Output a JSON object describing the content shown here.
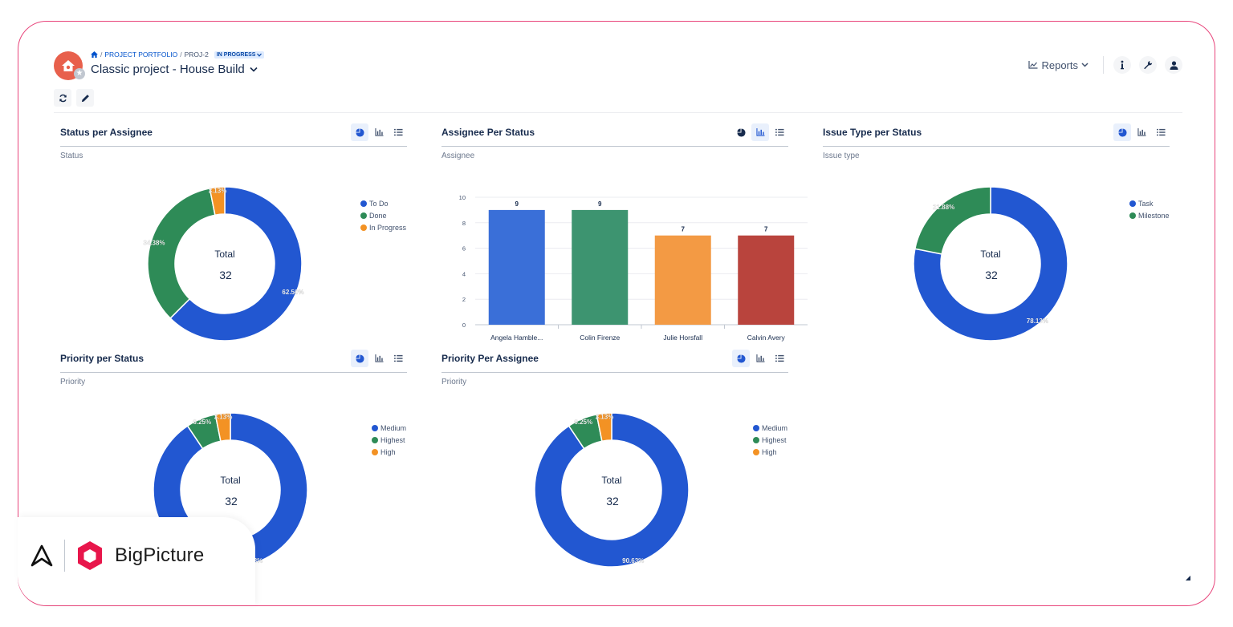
{
  "header": {
    "breadcrumb": {
      "portfolio": "PROJECT PORTFOLIO",
      "sep": "/",
      "project_key": "PROJ-2",
      "status": "IN PROGRESS"
    },
    "title": "Classic project - House Build",
    "reports_label": "Reports"
  },
  "colors": {
    "blue": "#2257d1",
    "green": "#2e8b57",
    "orange": "#f39224",
    "red": "#b94039",
    "brand": "#e8467c"
  },
  "widgets": {
    "status_per_assignee": {
      "title": "Status per Assignee",
      "subtitle": "Status"
    },
    "assignee_per_status": {
      "title": "Assignee Per Status",
      "subtitle": "Assignee"
    },
    "issue_type_per_status": {
      "title": "Issue Type per Status",
      "subtitle": "Issue type"
    },
    "priority_per_status": {
      "title": "Priority per Status",
      "subtitle": "Priority"
    },
    "priority_per_assignee": {
      "title": "Priority Per Assignee",
      "subtitle": "Priority"
    }
  },
  "chart_data": [
    {
      "id": "status_per_assignee",
      "type": "pie",
      "title": "Status per Assignee",
      "center_label": "Total",
      "center_value": "32",
      "slices": [
        {
          "name": "To Do",
          "value": 62.5,
          "label": "62.50%",
          "color": "#2257d1"
        },
        {
          "name": "Done",
          "value": 34.38,
          "label": "34.38%",
          "color": "#2e8b57"
        },
        {
          "name": "In Progress",
          "value": 3.13,
          "label": "3.13%",
          "color": "#f39224"
        }
      ],
      "legend": "right"
    },
    {
      "id": "assignee_per_status",
      "type": "bar",
      "title": "Assignee Per Status",
      "categories": [
        "Angela Hamble...",
        "Colin Firenze",
        "Julie Horsfall",
        "Calvin Avery"
      ],
      "values": [
        9,
        9,
        7,
        7
      ],
      "colors": [
        "#3a6fd8",
        "#3d9470",
        "#f39a44",
        "#b9443d"
      ],
      "ylim": [
        0,
        10
      ],
      "yticks": [
        0,
        2,
        4,
        6,
        8,
        10
      ],
      "grid": true
    },
    {
      "id": "issue_type_per_status",
      "type": "pie",
      "title": "Issue Type per Status",
      "center_label": "Total",
      "center_value": "32",
      "slices": [
        {
          "name": "Task",
          "value": 78.13,
          "label": "78.13%",
          "color": "#2257d1"
        },
        {
          "name": "Milestone",
          "value": 21.88,
          "label": "21.88%",
          "color": "#2e8b57"
        }
      ],
      "legend": "right"
    },
    {
      "id": "priority_per_status",
      "type": "pie",
      "title": "Priority per Status",
      "center_label": "Total",
      "center_value": "32",
      "slices": [
        {
          "name": "Medium",
          "value": 90.63,
          "label": "90.63%",
          "color": "#2257d1"
        },
        {
          "name": "Highest",
          "value": 6.25,
          "label": "6.25%",
          "color": "#2e8b57"
        },
        {
          "name": "High",
          "value": 3.13,
          "label": "3.13%",
          "color": "#f39224"
        }
      ],
      "legend": "right"
    },
    {
      "id": "priority_per_assignee",
      "type": "pie",
      "title": "Priority Per Assignee",
      "center_label": "Total",
      "center_value": "32",
      "slices": [
        {
          "name": "Medium",
          "value": 90.63,
          "label": "90.63%",
          "color": "#2257d1"
        },
        {
          "name": "Highest",
          "value": 6.25,
          "label": "6.25%",
          "color": "#2e8b57"
        },
        {
          "name": "High",
          "value": 3.13,
          "label": "3.13%",
          "color": "#f39224"
        }
      ],
      "legend": "right"
    }
  ],
  "brand": {
    "name": "BigPicture"
  }
}
